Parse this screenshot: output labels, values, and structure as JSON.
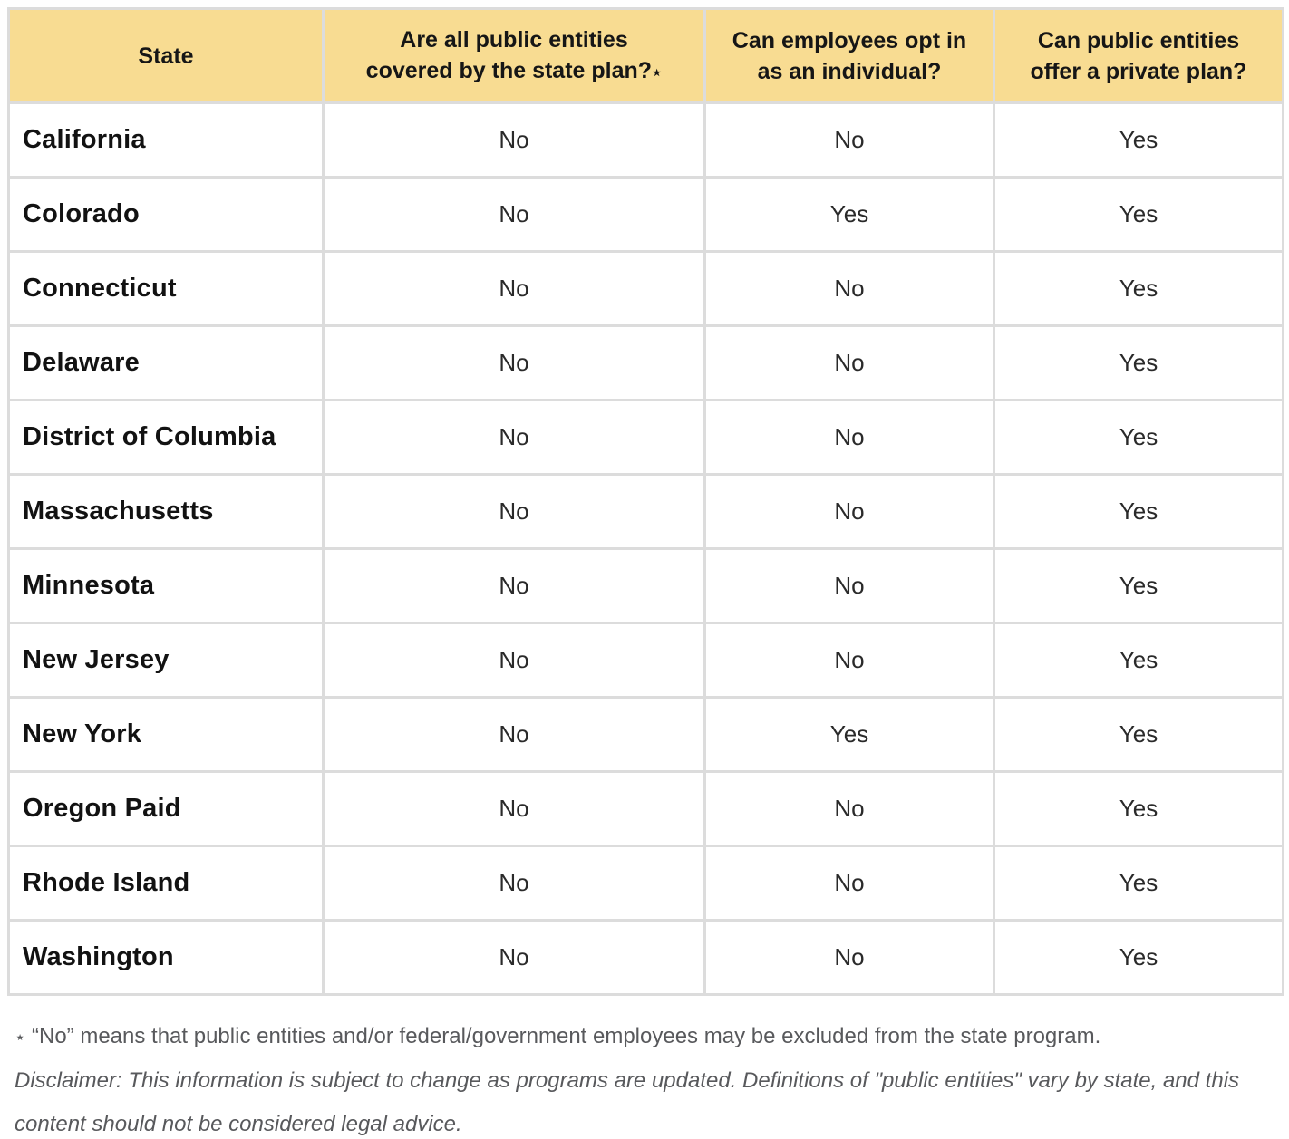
{
  "table": {
    "columns": [
      {
        "line1": "State",
        "line2": "",
        "star": ""
      },
      {
        "line1": "Are all public entities",
        "line2": "covered by the state plan?",
        "star": "⋆"
      },
      {
        "line1": "Can employees opt in",
        "line2": "as an individual?",
        "star": ""
      },
      {
        "line1": "Can public entities",
        "line2": "offer a private  plan?",
        "star": ""
      }
    ],
    "rows": [
      {
        "state": "California",
        "covered": "No",
        "opt_in": "No",
        "private_plan": "Yes"
      },
      {
        "state": "Colorado",
        "covered": "No",
        "opt_in": "Yes",
        "private_plan": "Yes"
      },
      {
        "state": "Connecticut",
        "covered": "No",
        "opt_in": "No",
        "private_plan": "Yes"
      },
      {
        "state": "Delaware",
        "covered": "No",
        "opt_in": "No",
        "private_plan": "Yes"
      },
      {
        "state": "District of Columbia",
        "covered": "No",
        "opt_in": "No",
        "private_plan": "Yes"
      },
      {
        "state": "Massachusetts",
        "covered": "No",
        "opt_in": "No",
        "private_plan": "Yes"
      },
      {
        "state": "Minnesota",
        "covered": "No",
        "opt_in": "No",
        "private_plan": "Yes"
      },
      {
        "state": "New Jersey",
        "covered": "No",
        "opt_in": "No",
        "private_plan": "Yes"
      },
      {
        "state": "New York",
        "covered": "No",
        "opt_in": "Yes",
        "private_plan": "Yes"
      },
      {
        "state": "Oregon Paid",
        "covered": "No",
        "opt_in": "No",
        "private_plan": "Yes"
      },
      {
        "state": "Rhode Island",
        "covered": "No",
        "opt_in": "No",
        "private_plan": "Yes"
      },
      {
        "state": "Washington",
        "covered": "No",
        "opt_in": "No",
        "private_plan": "Yes"
      }
    ]
  },
  "footnotes": {
    "star": "⋆",
    "asterisk_note": "“No” means that public entities and/or federal/government employees may be excluded from the state program.",
    "disclaimer": "Disclaimer: This information is subject to change as programs are updated. Definitions of \"public entities\" vary by state, and this content should not be considered legal advice."
  },
  "colors": {
    "header_bg": "#F8DC92",
    "border": "#DCDCDC",
    "header_text": "#161616",
    "state_text": "#121212",
    "value_text": "#2A2A2A",
    "footnote_text": "#58595C"
  }
}
